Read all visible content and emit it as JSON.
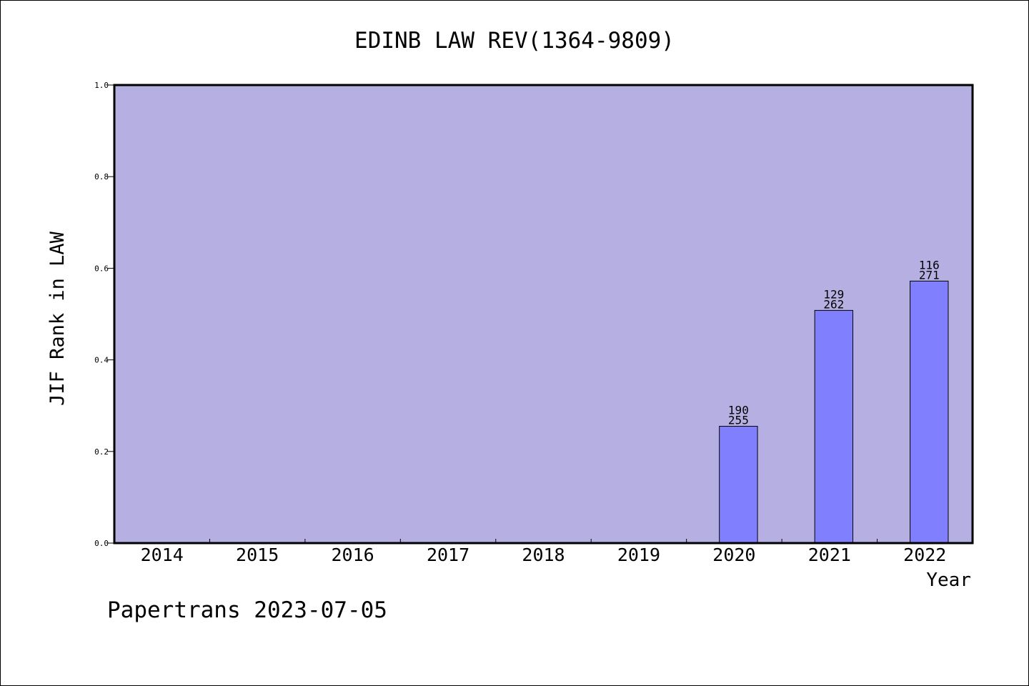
{
  "chart_data": {
    "type": "bar",
    "title": "EDINB LAW REV(1364-9809)",
    "xlabel": "Year",
    "ylabel": "JIF Rank in LAW",
    "categories": [
      "2014",
      "2015",
      "2016",
      "2017",
      "2018",
      "2019",
      "2020",
      "2021",
      "2022"
    ],
    "values": [
      null,
      null,
      null,
      null,
      null,
      null,
      0.255,
      0.508,
      0.572
    ],
    "bar_labels": [
      {
        "year": "2020",
        "top": "190",
        "bottom": "255"
      },
      {
        "year": "2021",
        "top": "129",
        "bottom": "262"
      },
      {
        "year": "2022",
        "top": "116",
        "bottom": "271"
      }
    ],
    "ylim": [
      0,
      1
    ],
    "yticks": [
      "0.0",
      "0.2",
      "0.4",
      "0.6",
      "0.8",
      "1.0"
    ],
    "grid": false,
    "colors": {
      "plot_background": "#b6b0e2",
      "bar": "#8080ff",
      "axis": "#000000"
    }
  },
  "footer": {
    "text": "Papertrans 2023-07-05"
  }
}
